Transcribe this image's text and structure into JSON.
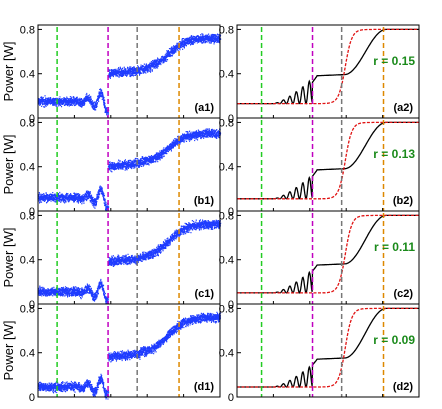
{
  "figure": {
    "ylabel": "Power [W]",
    "colors": {
      "measured": "#1f3cff",
      "black_curve": "#000000",
      "red_curve": "#e01414",
      "green_marker": "#22cc22",
      "magenta_marker": "#c000c0",
      "gray_marker": "#777777",
      "orange_marker": "#dd8800",
      "r_label": "#1a8a1a"
    }
  },
  "chart_data": [
    {
      "type": "scatter",
      "panel": "(a1)",
      "ylabel": "Power [W]",
      "ylim": [
        0,
        0.84
      ],
      "yticks": [
        "0",
        "0.4",
        "0.8"
      ],
      "series": [
        {
          "kind": "measured",
          "low": 0.15,
          "mid": 0.4,
          "high": 0.72
        }
      ]
    },
    {
      "type": "line",
      "panel": "(a2)",
      "r_label": "r = 0.15",
      "ylim": [
        0,
        0.84
      ],
      "yticks": [
        "0",
        "0.4",
        "0.8"
      ],
      "series": [
        {
          "kind": "black",
          "low": 0.13,
          "mid": 0.38,
          "high": 0.8
        },
        {
          "kind": "red",
          "low": 0.13,
          "high": 0.8
        }
      ]
    },
    {
      "type": "scatter",
      "panel": "(b1)",
      "ylabel": "Power [W]",
      "ylim": [
        0,
        0.84
      ],
      "yticks": [
        "0",
        "0.4",
        "0.8"
      ],
      "series": [
        {
          "kind": "measured",
          "low": 0.12,
          "mid": 0.4,
          "high": 0.7
        }
      ]
    },
    {
      "type": "line",
      "panel": "(b2)",
      "r_label": "r = 0.13",
      "ylim": [
        0,
        0.84
      ],
      "yticks": [
        "0",
        "0.4",
        "0.8"
      ],
      "series": [
        {
          "kind": "black",
          "low": 0.11,
          "mid": 0.37,
          "high": 0.8
        },
        {
          "kind": "red",
          "low": 0.11,
          "high": 0.8
        }
      ]
    },
    {
      "type": "scatter",
      "panel": "(c1)",
      "ylabel": "Power [W]",
      "ylim": [
        0,
        0.84
      ],
      "yticks": [
        "0",
        "0.4",
        "0.8"
      ],
      "series": [
        {
          "kind": "measured",
          "low": 0.11,
          "mid": 0.38,
          "high": 0.72
        }
      ]
    },
    {
      "type": "line",
      "panel": "(c2)",
      "r_label": "r = 0.11",
      "ylim": [
        0,
        0.84
      ],
      "yticks": [
        "0",
        "0.4",
        "0.8"
      ],
      "series": [
        {
          "kind": "black",
          "low": 0.1,
          "mid": 0.35,
          "high": 0.8
        },
        {
          "kind": "red",
          "low": 0.1,
          "high": 0.8
        }
      ]
    },
    {
      "type": "scatter",
      "panel": "(d1)",
      "ylabel": "Power [W]",
      "ylim": [
        0,
        0.84
      ],
      "yticks": [
        "0",
        "0.4",
        "0.8"
      ],
      "series": [
        {
          "kind": "measured",
          "low": 0.09,
          "mid": 0.36,
          "high": 0.72
        }
      ]
    },
    {
      "type": "line",
      "panel": "(d2)",
      "r_label": "r = 0.09",
      "ylim": [
        0,
        0.84
      ],
      "yticks": [
        "0",
        "0.4",
        "0.8"
      ],
      "series": [
        {
          "kind": "black",
          "low": 0.09,
          "mid": 0.34,
          "high": 0.8
        },
        {
          "kind": "red",
          "low": 0.09,
          "high": 0.8
        }
      ]
    }
  ]
}
